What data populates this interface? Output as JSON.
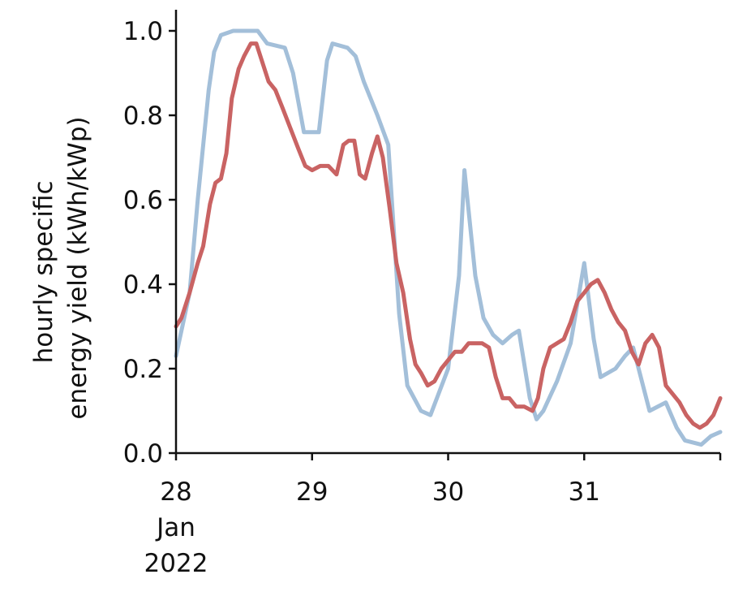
{
  "chart_data": {
    "type": "line",
    "title": "",
    "xlabel": "",
    "ylabel_lines": [
      "hourly specific",
      "energy yield (kWh/kWp)"
    ],
    "x_unit": "day (Jan 2022)",
    "xlim": [
      28,
      32
    ],
    "ylim": [
      0,
      1.05
    ],
    "x_ticks": [
      {
        "value": 28,
        "lines": [
          "28",
          "Jan",
          "2022"
        ]
      },
      {
        "value": 29,
        "lines": [
          "29"
        ]
      },
      {
        "value": 30,
        "lines": [
          "30"
        ]
      },
      {
        "value": 31,
        "lines": [
          "31"
        ]
      }
    ],
    "y_ticks": [
      {
        "value": 0.0,
        "label": "0.0"
      },
      {
        "value": 0.2,
        "label": "0.2"
      },
      {
        "value": 0.4,
        "label": "0.4"
      },
      {
        "value": 0.6,
        "label": "0.6"
      },
      {
        "value": 0.8,
        "label": "0.8"
      },
      {
        "value": 1.0,
        "label": "1.0"
      }
    ],
    "grid": false,
    "series": [
      {
        "color": "#a3bfd9",
        "points": [
          [
            28.0,
            0.23
          ],
          [
            28.1,
            0.38
          ],
          [
            28.16,
            0.6
          ],
          [
            28.24,
            0.86
          ],
          [
            28.28,
            0.95
          ],
          [
            28.33,
            0.99
          ],
          [
            28.42,
            1.0
          ],
          [
            28.5,
            1.0
          ],
          [
            28.6,
            1.0
          ],
          [
            28.67,
            0.97
          ],
          [
            28.8,
            0.96
          ],
          [
            28.86,
            0.9
          ],
          [
            28.94,
            0.76
          ],
          [
            29.05,
            0.76
          ],
          [
            29.11,
            0.93
          ],
          [
            29.15,
            0.97
          ],
          [
            29.26,
            0.96
          ],
          [
            29.32,
            0.94
          ],
          [
            29.38,
            0.88
          ],
          [
            29.48,
            0.8
          ],
          [
            29.56,
            0.73
          ],
          [
            29.64,
            0.33
          ],
          [
            29.7,
            0.16
          ],
          [
            29.8,
            0.1
          ],
          [
            29.87,
            0.09
          ],
          [
            30.0,
            0.2
          ],
          [
            30.08,
            0.42
          ],
          [
            30.12,
            0.67
          ],
          [
            30.2,
            0.42
          ],
          [
            30.26,
            0.32
          ],
          [
            30.33,
            0.28
          ],
          [
            30.4,
            0.26
          ],
          [
            30.47,
            0.28
          ],
          [
            30.52,
            0.29
          ],
          [
            30.6,
            0.13
          ],
          [
            30.65,
            0.08
          ],
          [
            30.7,
            0.1
          ],
          [
            30.8,
            0.17
          ],
          [
            30.9,
            0.26
          ],
          [
            31.0,
            0.45
          ],
          [
            31.07,
            0.27
          ],
          [
            31.12,
            0.18
          ],
          [
            31.23,
            0.2
          ],
          [
            31.3,
            0.23
          ],
          [
            31.36,
            0.25
          ],
          [
            31.48,
            0.1
          ],
          [
            31.6,
            0.12
          ],
          [
            31.68,
            0.06
          ],
          [
            31.74,
            0.03
          ],
          [
            31.86,
            0.02
          ],
          [
            31.93,
            0.04
          ],
          [
            32.0,
            0.05
          ]
        ]
      },
      {
        "color": "#c96363",
        "points": [
          [
            28.0,
            0.3
          ],
          [
            28.04,
            0.32
          ],
          [
            28.1,
            0.38
          ],
          [
            28.16,
            0.45
          ],
          [
            28.2,
            0.49
          ],
          [
            28.25,
            0.59
          ],
          [
            28.29,
            0.64
          ],
          [
            28.33,
            0.65
          ],
          [
            28.37,
            0.71
          ],
          [
            28.41,
            0.84
          ],
          [
            28.46,
            0.91
          ],
          [
            28.5,
            0.94
          ],
          [
            28.55,
            0.97
          ],
          [
            28.59,
            0.97
          ],
          [
            28.63,
            0.93
          ],
          [
            28.68,
            0.88
          ],
          [
            28.73,
            0.86
          ],
          [
            28.78,
            0.82
          ],
          [
            28.84,
            0.77
          ],
          [
            28.9,
            0.72
          ],
          [
            28.95,
            0.68
          ],
          [
            29.0,
            0.67
          ],
          [
            29.06,
            0.68
          ],
          [
            29.12,
            0.68
          ],
          [
            29.18,
            0.66
          ],
          [
            29.23,
            0.73
          ],
          [
            29.27,
            0.74
          ],
          [
            29.31,
            0.74
          ],
          [
            29.35,
            0.66
          ],
          [
            29.39,
            0.65
          ],
          [
            29.44,
            0.71
          ],
          [
            29.48,
            0.75
          ],
          [
            29.52,
            0.7
          ],
          [
            29.57,
            0.58
          ],
          [
            29.62,
            0.45
          ],
          [
            29.67,
            0.38
          ],
          [
            29.72,
            0.27
          ],
          [
            29.76,
            0.21
          ],
          [
            29.8,
            0.19
          ],
          [
            29.85,
            0.16
          ],
          [
            29.9,
            0.17
          ],
          [
            29.95,
            0.2
          ],
          [
            30.0,
            0.22
          ],
          [
            30.05,
            0.24
          ],
          [
            30.1,
            0.24
          ],
          [
            30.15,
            0.26
          ],
          [
            30.2,
            0.26
          ],
          [
            30.25,
            0.26
          ],
          [
            30.3,
            0.25
          ],
          [
            30.35,
            0.18
          ],
          [
            30.4,
            0.13
          ],
          [
            30.45,
            0.13
          ],
          [
            30.5,
            0.11
          ],
          [
            30.56,
            0.11
          ],
          [
            30.62,
            0.1
          ],
          [
            30.66,
            0.13
          ],
          [
            30.7,
            0.2
          ],
          [
            30.75,
            0.25
          ],
          [
            30.8,
            0.26
          ],
          [
            30.85,
            0.27
          ],
          [
            30.9,
            0.31
          ],
          [
            30.95,
            0.36
          ],
          [
            31.0,
            0.38
          ],
          [
            31.05,
            0.4
          ],
          [
            31.1,
            0.41
          ],
          [
            31.15,
            0.38
          ],
          [
            31.2,
            0.34
          ],
          [
            31.25,
            0.31
          ],
          [
            31.3,
            0.29
          ],
          [
            31.35,
            0.24
          ],
          [
            31.4,
            0.21
          ],
          [
            31.45,
            0.26
          ],
          [
            31.5,
            0.28
          ],
          [
            31.55,
            0.25
          ],
          [
            31.6,
            0.16
          ],
          [
            31.65,
            0.14
          ],
          [
            31.7,
            0.12
          ],
          [
            31.75,
            0.09
          ],
          [
            31.8,
            0.07
          ],
          [
            31.85,
            0.06
          ],
          [
            31.9,
            0.07
          ],
          [
            31.95,
            0.09
          ],
          [
            32.0,
            0.13
          ]
        ]
      }
    ]
  }
}
